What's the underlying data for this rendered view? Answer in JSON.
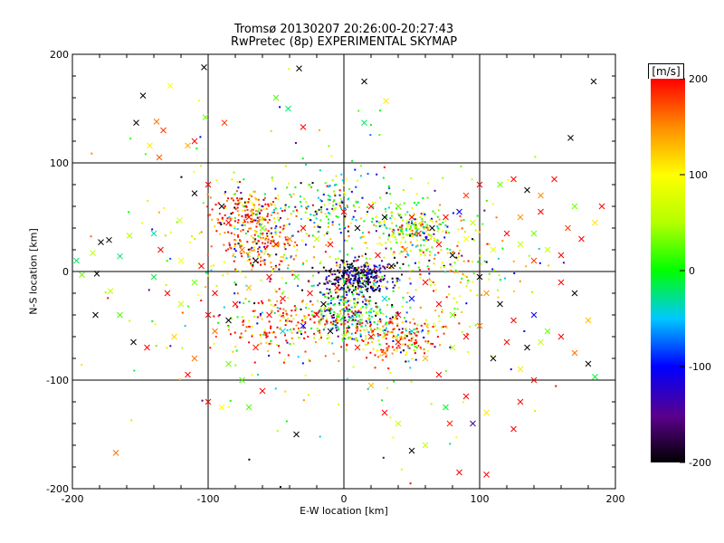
{
  "chart_data": {
    "type": "scatter",
    "title": "Tromsø 20130207 20:26:00-20:27:43",
    "subtitle": "RwPretec (8p) EXPERIMENTAL SKYMAP",
    "xlabel": "E-W location [km]",
    "ylabel": "N-S location [km]",
    "xlim": [
      -200,
      200
    ],
    "ylim": [
      -200,
      200
    ],
    "xticks": [
      "-200",
      "-100",
      "0",
      "100",
      "200"
    ],
    "yticks": [
      "-200",
      "-100",
      "0",
      "100",
      "200"
    ],
    "grid": true,
    "colorbar": {
      "label": "[m/s]",
      "range": [
        -200,
        200
      ],
      "ticks": [
        "200",
        "100",
        "0",
        "-100",
        "-200"
      ]
    },
    "crosses": [
      {
        "x": -168,
        "y": -167,
        "v": 160
      },
      {
        "x": -110,
        "y": 72,
        "v": -200
      },
      {
        "x": -103,
        "y": 188,
        "v": -200
      },
      {
        "x": -33,
        "y": 187,
        "v": -200
      },
      {
        "x": 184,
        "y": 175,
        "v": -200
      },
      {
        "x": 167,
        "y": 123,
        "v": -200
      },
      {
        "x": -148,
        "y": 162,
        "v": -200
      },
      {
        "x": -153,
        "y": 137,
        "v": -200
      },
      {
        "x": -128,
        "y": 171,
        "v": 100
      },
      {
        "x": -138,
        "y": 138,
        "v": 160
      },
      {
        "x": -133,
        "y": 130,
        "v": 180
      },
      {
        "x": -143,
        "y": 116,
        "v": 110
      },
      {
        "x": -136,
        "y": 105,
        "v": 170
      },
      {
        "x": -115,
        "y": 116,
        "v": 140
      },
      {
        "x": -88,
        "y": 137,
        "v": 180
      },
      {
        "x": -102,
        "y": 142,
        "v": 30
      },
      {
        "x": -41,
        "y": 150,
        "v": -20
      },
      {
        "x": 15,
        "y": 137,
        "v": -20
      },
      {
        "x": 31,
        "y": 157,
        "v": 110
      },
      {
        "x": -30,
        "y": 133,
        "v": 200
      },
      {
        "x": -121,
        "y": 47,
        "v": 80
      },
      {
        "x": -140,
        "y": 35,
        "v": -30
      },
      {
        "x": -158,
        "y": 33,
        "v": 50
      },
      {
        "x": -179,
        "y": 27,
        "v": -200
      },
      {
        "x": -185,
        "y": 17,
        "v": 60
      },
      {
        "x": -197,
        "y": 10,
        "v": -20
      },
      {
        "x": -173,
        "y": 29,
        "v": -200
      },
      {
        "x": -165,
        "y": 14,
        "v": -30
      },
      {
        "x": -193,
        "y": -3,
        "v": 30
      },
      {
        "x": -182,
        "y": -2,
        "v": -200
      },
      {
        "x": -172,
        "y": -18,
        "v": 60
      },
      {
        "x": -183,
        "y": -40,
        "v": -200
      },
      {
        "x": -165,
        "y": -40,
        "v": 20
      },
      {
        "x": -155,
        "y": -65,
        "v": -200
      },
      {
        "x": -145,
        "y": -70,
        "v": 200
      },
      {
        "x": -125,
        "y": -60,
        "v": 120
      },
      {
        "x": -115,
        "y": -95,
        "v": 200
      },
      {
        "x": -110,
        "y": -80,
        "v": 160
      },
      {
        "x": -120,
        "y": -30,
        "v": 60
      },
      {
        "x": -100,
        "y": -40,
        "v": 200
      },
      {
        "x": -95,
        "y": -55,
        "v": 160
      },
      {
        "x": -85,
        "y": -85,
        "v": 30
      },
      {
        "x": -90,
        "y": -125,
        "v": 100
      },
      {
        "x": -75,
        "y": -100,
        "v": 20
      },
      {
        "x": -65,
        "y": -70,
        "v": 190
      },
      {
        "x": -55,
        "y": -40,
        "v": 200
      },
      {
        "x": -45,
        "y": -55,
        "v": -40
      },
      {
        "x": -30,
        "y": -50,
        "v": -100
      },
      {
        "x": -20,
        "y": -40,
        "v": 200
      },
      {
        "x": -10,
        "y": -55,
        "v": -200
      },
      {
        "x": 0,
        "y": -60,
        "v": 60
      },
      {
        "x": 10,
        "y": -70,
        "v": 190
      },
      {
        "x": 20,
        "y": -60,
        "v": 200
      },
      {
        "x": 30,
        "y": -75,
        "v": 150
      },
      {
        "x": 40,
        "y": -65,
        "v": 200
      },
      {
        "x": 50,
        "y": -55,
        "v": -40
      },
      {
        "x": 60,
        "y": -80,
        "v": 130
      },
      {
        "x": 70,
        "y": -95,
        "v": 200
      },
      {
        "x": 80,
        "y": -70,
        "v": 60
      },
      {
        "x": 90,
        "y": -60,
        "v": 200
      },
      {
        "x": 100,
        "y": -50,
        "v": 160
      },
      {
        "x": 110,
        "y": -80,
        "v": -200
      },
      {
        "x": 120,
        "y": -65,
        "v": 200
      },
      {
        "x": 130,
        "y": -90,
        "v": 110
      },
      {
        "x": 140,
        "y": -40,
        "v": -100
      },
      {
        "x": 150,
        "y": -55,
        "v": 30
      },
      {
        "x": 160,
        "y": -60,
        "v": 200
      },
      {
        "x": 170,
        "y": -75,
        "v": 160
      },
      {
        "x": 180,
        "y": -85,
        "v": -200
      },
      {
        "x": 185,
        "y": -97,
        "v": -10
      },
      {
        "x": 145,
        "y": -65,
        "v": 60
      },
      {
        "x": 135,
        "y": -70,
        "v": -200
      },
      {
        "x": 125,
        "y": -45,
        "v": 200
      },
      {
        "x": 115,
        "y": -30,
        "v": -200
      },
      {
        "x": 105,
        "y": -20,
        "v": 150
      },
      {
        "x": 100,
        "y": -5,
        "v": -200
      },
      {
        "x": 110,
        "y": 20,
        "v": 80
      },
      {
        "x": 120,
        "y": 35,
        "v": 200
      },
      {
        "x": 130,
        "y": 25,
        "v": 60
      },
      {
        "x": 140,
        "y": 10,
        "v": 180
      },
      {
        "x": 150,
        "y": 20,
        "v": 60
      },
      {
        "x": 160,
        "y": 15,
        "v": 200
      },
      {
        "x": 165,
        "y": 40,
        "v": 180
      },
      {
        "x": 175,
        "y": 30,
        "v": 200
      },
      {
        "x": 185,
        "y": 45,
        "v": 110
      },
      {
        "x": 190,
        "y": 60,
        "v": 200
      },
      {
        "x": 170,
        "y": 60,
        "v": 30
      },
      {
        "x": 155,
        "y": 85,
        "v": 200
      },
      {
        "x": 145,
        "y": 70,
        "v": 150
      },
      {
        "x": 135,
        "y": 75,
        "v": -200
      },
      {
        "x": 125,
        "y": 85,
        "v": 200
      },
      {
        "x": 115,
        "y": 80,
        "v": 30
      },
      {
        "x": 100,
        "y": 80,
        "v": 200
      },
      {
        "x": 90,
        "y": 70,
        "v": 180
      },
      {
        "x": 130,
        "y": 50,
        "v": 150
      },
      {
        "x": 145,
        "y": 55,
        "v": 200
      },
      {
        "x": 140,
        "y": 35,
        "v": 30
      },
      {
        "x": 160,
        "y": -10,
        "v": 200
      },
      {
        "x": 170,
        "y": -20,
        "v": -200
      },
      {
        "x": 180,
        "y": -45,
        "v": 130
      },
      {
        "x": 140,
        "y": -100,
        "v": 200
      },
      {
        "x": 130,
        "y": -120,
        "v": 200
      },
      {
        "x": 125,
        "y": -145,
        "v": 200
      },
      {
        "x": 105,
        "y": -130,
        "v": 110
      },
      {
        "x": 95,
        "y": -140,
        "v": -150
      },
      {
        "x": 78,
        "y": -140,
        "v": 190
      },
      {
        "x": 60,
        "y": -160,
        "v": 60
      },
      {
        "x": 50,
        "y": -165,
        "v": -200
      },
      {
        "x": 40,
        "y": -140,
        "v": 60
      },
      {
        "x": 30,
        "y": -130,
        "v": 200
      },
      {
        "x": 20,
        "y": -105,
        "v": 130
      },
      {
        "x": 90,
        "y": -115,
        "v": 200
      },
      {
        "x": 75,
        "y": -125,
        "v": -10
      },
      {
        "x": 105,
        "y": -187,
        "v": 200
      },
      {
        "x": 85,
        "y": -185,
        "v": 200
      },
      {
        "x": -35,
        "y": -150,
        "v": -200
      },
      {
        "x": -60,
        "y": -110,
        "v": 200
      },
      {
        "x": -70,
        "y": -125,
        "v": 20
      },
      {
        "x": -100,
        "y": -120,
        "v": 200
      },
      {
        "x": -110,
        "y": 120,
        "v": 200
      },
      {
        "x": 15,
        "y": 175,
        "v": -200
      },
      {
        "x": -50,
        "y": 160,
        "v": 20
      },
      {
        "x": -100,
        "y": 80,
        "v": 200
      },
      {
        "x": -90,
        "y": 60,
        "v": -200
      },
      {
        "x": -85,
        "y": 45,
        "v": 200
      },
      {
        "x": -70,
        "y": 50,
        "v": 200
      },
      {
        "x": -60,
        "y": 40,
        "v": 30
      },
      {
        "x": -50,
        "y": 25,
        "v": 200
      },
      {
        "x": -40,
        "y": 30,
        "v": 150
      },
      {
        "x": -30,
        "y": 40,
        "v": 200
      },
      {
        "x": -20,
        "y": 30,
        "v": 60
      },
      {
        "x": -10,
        "y": 25,
        "v": 200
      },
      {
        "x": -65,
        "y": 10,
        "v": -200
      },
      {
        "x": -55,
        "y": -5,
        "v": 200
      },
      {
        "x": -70,
        "y": -15,
        "v": 130
      },
      {
        "x": -80,
        "y": -30,
        "v": 200
      },
      {
        "x": -75,
        "y": 20,
        "v": 160
      },
      {
        "x": -85,
        "y": -45,
        "v": -200
      },
      {
        "x": -95,
        "y": -20,
        "v": 200
      },
      {
        "x": -110,
        "y": -10,
        "v": 30
      },
      {
        "x": -105,
        "y": 5,
        "v": 200
      },
      {
        "x": -120,
        "y": 10,
        "v": 100
      },
      {
        "x": -130,
        "y": -20,
        "v": 200
      },
      {
        "x": -140,
        "y": -5,
        "v": -10
      },
      {
        "x": -135,
        "y": 20,
        "v": 200
      },
      {
        "x": 20,
        "y": 60,
        "v": 200
      },
      {
        "x": 30,
        "y": 50,
        "v": -200
      },
      {
        "x": 40,
        "y": 60,
        "v": 30
      },
      {
        "x": 50,
        "y": 50,
        "v": 200
      },
      {
        "x": 55,
        "y": 35,
        "v": 190
      },
      {
        "x": 65,
        "y": 40,
        "v": -200
      },
      {
        "x": 75,
        "y": 50,
        "v": 200
      },
      {
        "x": 85,
        "y": 55,
        "v": -100
      },
      {
        "x": 95,
        "y": 45,
        "v": 60
      },
      {
        "x": 70,
        "y": 25,
        "v": 200
      },
      {
        "x": 80,
        "y": 15,
        "v": -200
      },
      {
        "x": 90,
        "y": 30,
        "v": 100
      },
      {
        "x": 10,
        "y": 40,
        "v": -200
      },
      {
        "x": 0,
        "y": 55,
        "v": 200
      },
      {
        "x": 45,
        "y": 20,
        "v": 150
      },
      {
        "x": 35,
        "y": 5,
        "v": -200
      },
      {
        "x": 25,
        "y": 15,
        "v": 200
      },
      {
        "x": 60,
        "y": -10,
        "v": 200
      },
      {
        "x": 50,
        "y": -25,
        "v": -100
      },
      {
        "x": 70,
        "y": -30,
        "v": 200
      },
      {
        "x": 80,
        "y": -40,
        "v": 30
      },
      {
        "x": 40,
        "y": -40,
        "v": 200
      },
      {
        "x": 30,
        "y": -25,
        "v": -40
      },
      {
        "x": -5,
        "y": -15,
        "v": 200
      },
      {
        "x": -15,
        "y": -30,
        "v": -200
      },
      {
        "x": -25,
        "y": -20,
        "v": 200
      },
      {
        "x": -35,
        "y": -5,
        "v": 20
      },
      {
        "x": -45,
        "y": -25,
        "v": 200
      }
    ]
  }
}
